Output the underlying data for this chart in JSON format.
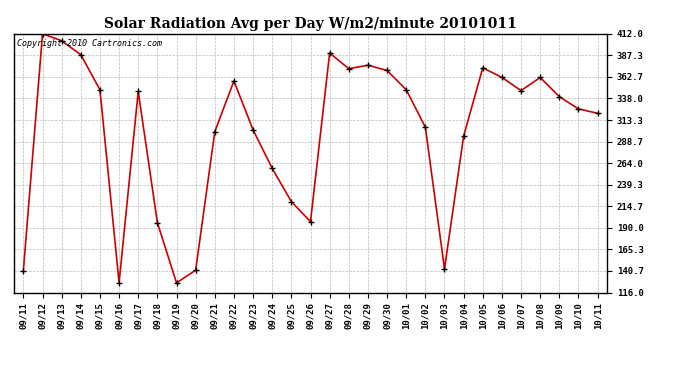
{
  "title": "Solar Radiation Avg per Day W/m2/minute 20101011",
  "copyright_text": "Copyright 2010 Cartronics.com",
  "x_labels": [
    "09/11",
    "09/12",
    "09/13",
    "09/14",
    "09/15",
    "09/16",
    "09/17",
    "09/18",
    "09/19",
    "09/20",
    "09/21",
    "09/22",
    "09/23",
    "09/24",
    "09/25",
    "09/26",
    "09/27",
    "09/28",
    "09/29",
    "09/30",
    "10/01",
    "10/02",
    "10/03",
    "10/04",
    "10/05",
    "10/06",
    "10/07",
    "10/08",
    "10/09",
    "10/10",
    "10/11"
  ],
  "y_values": [
    141.0,
    412.0,
    404.0,
    388.0,
    348.0,
    127.0,
    346.0,
    196.0,
    127.0,
    141.5,
    300.0,
    358.0,
    302.0,
    258.0,
    220.0,
    197.0,
    390.0,
    372.0,
    376.0,
    370.0,
    348.0,
    305.0,
    143.0,
    295.0,
    373.0,
    362.0,
    347.0,
    362.0,
    340.0,
    326.0,
    321.0
  ],
  "line_color": "#cc0000",
  "marker": "+",
  "marker_color": "#000000",
  "marker_size": 4,
  "line_width": 1.2,
  "ylim": [
    116.0,
    412.0
  ],
  "yticks": [
    116.0,
    140.7,
    165.3,
    190.0,
    214.7,
    239.3,
    264.0,
    288.7,
    313.3,
    338.0,
    362.7,
    387.3,
    412.0
  ],
  "background_color": "#ffffff",
  "grid_color": "#bbbbbb",
  "title_fontsize": 10,
  "tick_fontsize": 6.5,
  "copyright_fontsize": 6
}
